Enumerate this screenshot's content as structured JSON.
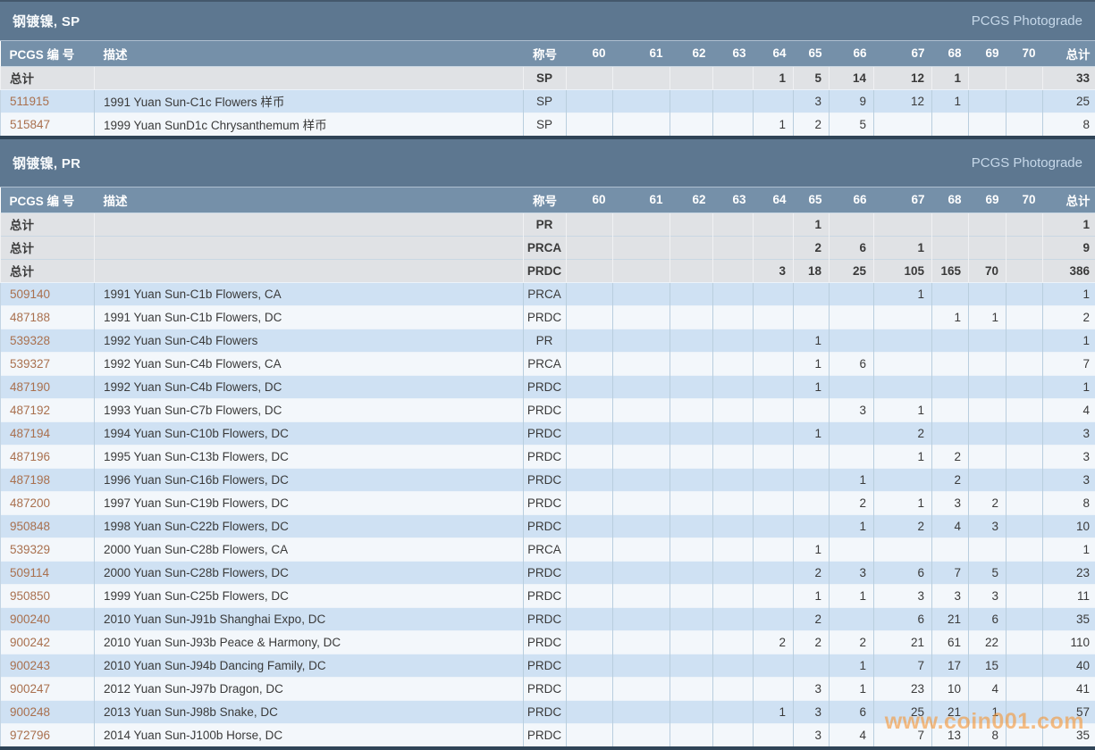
{
  "watermark": "www.coin001.com",
  "colors": {
    "title_bar": "#5d7790",
    "table_header": "#7590a9",
    "totals_row_bg": "#e0e2e5",
    "row_blue": "#cfe1f3",
    "row_white": "#f3f7fb",
    "pcgs_link": "#a9704e",
    "photograde_link": "#c6d8e9",
    "watermark_orange": "#f39637",
    "dark_divider": "#2f4457"
  },
  "sections": [
    {
      "title": "钢镀镍, SP",
      "photograde_label": "PCGS Photograde",
      "columns": {
        "number": "PCGS 编 号",
        "description": "描述",
        "designation": "称号",
        "grades": [
          "60",
          "61",
          "62",
          "63",
          "64",
          "65",
          "66",
          "67",
          "68",
          "69",
          "70"
        ],
        "total": "总计"
      },
      "totals": [
        {
          "label": "总计",
          "designation": "SP",
          "cells": [
            "",
            "",
            "",
            "",
            "1",
            "5",
            "14",
            "12",
            "1",
            "",
            ""
          ],
          "total": "33"
        }
      ],
      "rows": [
        {
          "number": "511915",
          "description": "1991 Yuan Sun-C1c Flowers 样币",
          "designation": "SP",
          "cells": [
            "",
            "",
            "",
            "",
            "",
            "3",
            "9",
            "12",
            "1",
            "",
            ""
          ],
          "total": "25"
        },
        {
          "number": "515847",
          "description": "1999 Yuan SunD1c Chrysanthemum 样币",
          "designation": "SP",
          "cells": [
            "",
            "",
            "",
            "",
            "1",
            "2",
            "5",
            "",
            "",
            "",
            ""
          ],
          "total": "8"
        }
      ]
    },
    {
      "title": "钢镀镍, PR",
      "photograde_label": "PCGS Photograde",
      "columns": {
        "number": "PCGS 编 号",
        "description": "描述",
        "designation": "称号",
        "grades": [
          "60",
          "61",
          "62",
          "63",
          "64",
          "65",
          "66",
          "67",
          "68",
          "69",
          "70"
        ],
        "total": "总计"
      },
      "totals": [
        {
          "label": "总计",
          "designation": "PR",
          "cells": [
            "",
            "",
            "",
            "",
            "",
            "1",
            "",
            "",
            "",
            "",
            ""
          ],
          "total": "1"
        },
        {
          "label": "总计",
          "designation": "PRCA",
          "cells": [
            "",
            "",
            "",
            "",
            "",
            "2",
            "6",
            "1",
            "",
            "",
            ""
          ],
          "total": "9"
        },
        {
          "label": "总计",
          "designation": "PRDC",
          "cells": [
            "",
            "",
            "",
            "",
            "3",
            "18",
            "25",
            "105",
            "165",
            "70",
            ""
          ],
          "total": "386"
        }
      ],
      "rows": [
        {
          "number": "509140",
          "description": "1991 Yuan Sun-C1b Flowers, CA",
          "designation": "PRCA",
          "cells": [
            "",
            "",
            "",
            "",
            "",
            "",
            "",
            "1",
            "",
            "",
            ""
          ],
          "total": "1"
        },
        {
          "number": "487188",
          "description": "1991 Yuan Sun-C1b Flowers, DC",
          "designation": "PRDC",
          "cells": [
            "",
            "",
            "",
            "",
            "",
            "",
            "",
            "",
            "1",
            "1",
            ""
          ],
          "total": "2"
        },
        {
          "number": "539328",
          "description": "1992 Yuan Sun-C4b Flowers",
          "designation": "PR",
          "cells": [
            "",
            "",
            "",
            "",
            "",
            "1",
            "",
            "",
            "",
            "",
            ""
          ],
          "total": "1"
        },
        {
          "number": "539327",
          "description": "1992 Yuan Sun-C4b Flowers, CA",
          "designation": "PRCA",
          "cells": [
            "",
            "",
            "",
            "",
            "",
            "1",
            "6",
            "",
            "",
            "",
            ""
          ],
          "total": "7"
        },
        {
          "number": "487190",
          "description": "1992 Yuan Sun-C4b Flowers, DC",
          "designation": "PRDC",
          "cells": [
            "",
            "",
            "",
            "",
            "",
            "1",
            "",
            "",
            "",
            "",
            ""
          ],
          "total": "1"
        },
        {
          "number": "487192",
          "description": "1993 Yuan Sun-C7b Flowers, DC",
          "designation": "PRDC",
          "cells": [
            "",
            "",
            "",
            "",
            "",
            "",
            "3",
            "1",
            "",
            "",
            ""
          ],
          "total": "4"
        },
        {
          "number": "487194",
          "description": "1994 Yuan Sun-C10b Flowers, DC",
          "designation": "PRDC",
          "cells": [
            "",
            "",
            "",
            "",
            "",
            "1",
            "",
            "2",
            "",
            "",
            ""
          ],
          "total": "3"
        },
        {
          "number": "487196",
          "description": "1995 Yuan Sun-C13b Flowers, DC",
          "designation": "PRDC",
          "cells": [
            "",
            "",
            "",
            "",
            "",
            "",
            "",
            "1",
            "2",
            "",
            ""
          ],
          "total": "3"
        },
        {
          "number": "487198",
          "description": "1996 Yuan Sun-C16b Flowers, DC",
          "designation": "PRDC",
          "cells": [
            "",
            "",
            "",
            "",
            "",
            "",
            "1",
            "",
            "2",
            "",
            ""
          ],
          "total": "3"
        },
        {
          "number": "487200",
          "description": "1997 Yuan Sun-C19b Flowers, DC",
          "designation": "PRDC",
          "cells": [
            "",
            "",
            "",
            "",
            "",
            "",
            "2",
            "1",
            "3",
            "2",
            ""
          ],
          "total": "8"
        },
        {
          "number": "950848",
          "description": "1998 Yuan Sun-C22b Flowers, DC",
          "designation": "PRDC",
          "cells": [
            "",
            "",
            "",
            "",
            "",
            "",
            "1",
            "2",
            "4",
            "3",
            ""
          ],
          "total": "10"
        },
        {
          "number": "539329",
          "description": "2000 Yuan Sun-C28b Flowers, CA",
          "designation": "PRCA",
          "cells": [
            "",
            "",
            "",
            "",
            "",
            "1",
            "",
            "",
            "",
            "",
            ""
          ],
          "total": "1"
        },
        {
          "number": "509114",
          "description": "2000 Yuan Sun-C28b Flowers, DC",
          "designation": "PRDC",
          "cells": [
            "",
            "",
            "",
            "",
            "",
            "2",
            "3",
            "6",
            "7",
            "5",
            ""
          ],
          "total": "23"
        },
        {
          "number": "950850",
          "description": "1999 Yuan Sun-C25b Flowers, DC",
          "designation": "PRDC",
          "cells": [
            "",
            "",
            "",
            "",
            "",
            "1",
            "1",
            "3",
            "3",
            "3",
            ""
          ],
          "total": "11"
        },
        {
          "number": "900240",
          "description": "2010 Yuan Sun-J91b Shanghai Expo, DC",
          "designation": "PRDC",
          "cells": [
            "",
            "",
            "",
            "",
            "",
            "2",
            "",
            "6",
            "21",
            "6",
            ""
          ],
          "total": "35"
        },
        {
          "number": "900242",
          "description": "2010 Yuan Sun-J93b Peace & Harmony, DC",
          "designation": "PRDC",
          "cells": [
            "",
            "",
            "",
            "",
            "2",
            "2",
            "2",
            "21",
            "61",
            "22",
            ""
          ],
          "total": "110"
        },
        {
          "number": "900243",
          "description": "2010 Yuan Sun-J94b Dancing Family, DC",
          "designation": "PRDC",
          "cells": [
            "",
            "",
            "",
            "",
            "",
            "",
            "1",
            "7",
            "17",
            "15",
            ""
          ],
          "total": "40"
        },
        {
          "number": "900247",
          "description": "2012 Yuan Sun-J97b Dragon, DC",
          "designation": "PRDC",
          "cells": [
            "",
            "",
            "",
            "",
            "",
            "3",
            "1",
            "23",
            "10",
            "4",
            ""
          ],
          "total": "41"
        },
        {
          "number": "900248",
          "description": "2013 Yuan Sun-J98b Snake, DC",
          "designation": "PRDC",
          "cells": [
            "",
            "",
            "",
            "",
            "1",
            "3",
            "6",
            "25",
            "21",
            "1",
            ""
          ],
          "total": "57"
        },
        {
          "number": "972796",
          "description": "2014 Yuan Sun-J100b Horse, DC",
          "designation": "PRDC",
          "cells": [
            "",
            "",
            "",
            "",
            "",
            "3",
            "4",
            "7",
            "13",
            "8",
            ""
          ],
          "total": "35"
        }
      ]
    }
  ]
}
